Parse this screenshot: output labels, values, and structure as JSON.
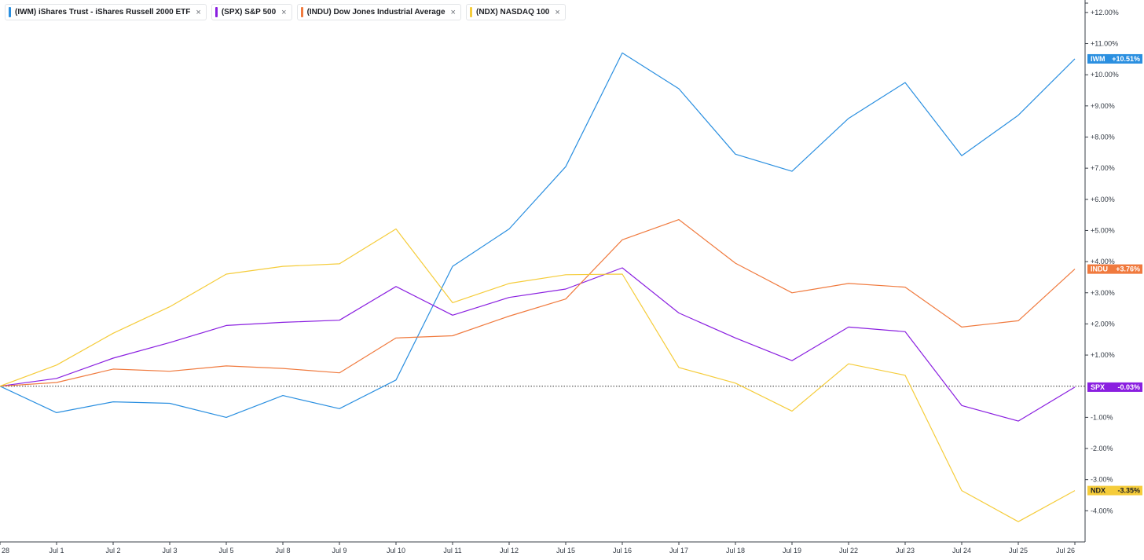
{
  "legend": [
    {
      "label": "(IWM) iShares Trust - iShares Russell 2000 ETF",
      "color": "#2a8fe0"
    },
    {
      "label": "(SPX) S&P 500",
      "color": "#8a1fe0"
    },
    {
      "label": "(INDU) Dow Jones Industrial Average",
      "color": "#f07a3e"
    },
    {
      "label": "(NDX) NASDAQ 100",
      "color": "#f5cc3a"
    }
  ],
  "legend_close_glyph": "×",
  "chart_data": {
    "type": "line",
    "x": [
      "28",
      "Jul 1",
      "Jul 2",
      "Jul 3",
      "Jul 5",
      "Jul 8",
      "Jul 9",
      "Jul 10",
      "Jul 11",
      "Jul 12",
      "Jul 15",
      "Jul 16",
      "Jul 17",
      "Jul 18",
      "Jul 19",
      "Jul 22",
      "Jul 23",
      "Jul 24",
      "Jul 25",
      "Jul 26"
    ],
    "ylim": [
      -5.0,
      12.4
    ],
    "y_ticks": [
      -4,
      -3,
      -2,
      -1,
      1,
      2,
      3,
      4,
      5,
      6,
      7,
      8,
      9,
      10,
      11,
      12
    ],
    "y_tick_labels": [
      "-4.00%",
      "-3.00%",
      "-2.00%",
      "-1.00%",
      "+1.00%",
      "+2.00%",
      "+3.00%",
      "+4.00%",
      "+5.00%",
      "+6.00%",
      "+7.00%",
      "+8.00%",
      "+9.00%",
      "+10.00%",
      "+11.00%",
      "+12.00%"
    ],
    "baseline": 0,
    "grid": false,
    "series": [
      {
        "name": "IWM",
        "color": "#2a8fe0",
        "end_label": "+10.51%",
        "values": [
          0,
          -0.85,
          -0.5,
          -0.55,
          -1.0,
          -0.3,
          -0.72,
          0.2,
          3.85,
          5.05,
          7.05,
          10.7,
          9.55,
          7.45,
          6.9,
          8.6,
          9.75,
          7.4,
          8.7,
          10.51
        ]
      },
      {
        "name": "SPX",
        "color": "#8a1fe0",
        "end_label": "-0.03%",
        "values": [
          0,
          0.25,
          0.9,
          1.4,
          1.95,
          2.05,
          2.12,
          3.2,
          2.28,
          2.85,
          3.12,
          3.8,
          2.35,
          1.55,
          0.82,
          1.9,
          1.75,
          -0.62,
          -1.12,
          -0.03
        ]
      },
      {
        "name": "INDU",
        "color": "#f07a3e",
        "end_label": "+3.76%",
        "values": [
          0,
          0.12,
          0.55,
          0.48,
          0.65,
          0.57,
          0.43,
          1.55,
          1.62,
          2.25,
          2.8,
          4.7,
          5.35,
          3.95,
          3.0,
          3.3,
          3.18,
          1.9,
          2.1,
          3.76
        ]
      },
      {
        "name": "NDX",
        "color": "#f5cc3a",
        "end_label": "-3.35%",
        "values": [
          0,
          0.68,
          1.7,
          2.55,
          3.6,
          3.85,
          3.93,
          5.05,
          2.68,
          3.3,
          3.58,
          3.6,
          0.6,
          0.1,
          -0.8,
          0.72,
          0.35,
          -3.35,
          -4.35,
          -3.35
        ]
      }
    ]
  }
}
